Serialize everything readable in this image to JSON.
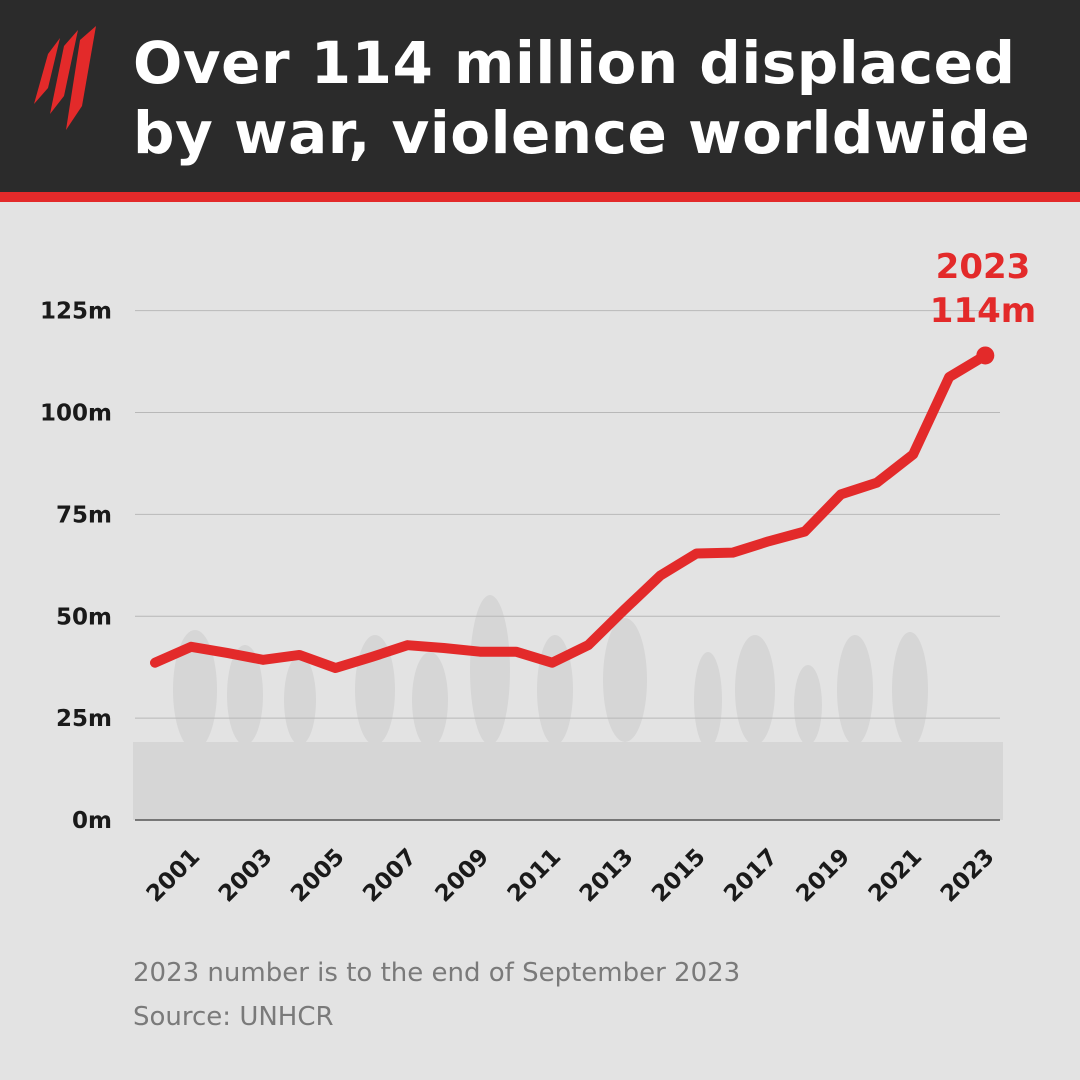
{
  "header": {
    "title_line1": "Over 114 million displaced",
    "title_line2": "by war, violence worldwide",
    "logo_icon": "sbs-logo-icon"
  },
  "colors": {
    "header_bg": "#2b2b2b",
    "accent": "#e32a2a",
    "background": "#e3e3e3"
  },
  "chart_data": {
    "type": "line",
    "title": "Over 114 million displaced by war, violence worldwide",
    "x": [
      2000,
      2001,
      2002,
      2003,
      2004,
      2005,
      2006,
      2007,
      2008,
      2009,
      2010,
      2011,
      2012,
      2013,
      2014,
      2015,
      2016,
      2017,
      2018,
      2019,
      2020,
      2021,
      2022,
      2023
    ],
    "series": [
      {
        "values": [
          38.6,
          42.5,
          41.0,
          39.3,
          40.5,
          37.3,
          40.0,
          42.9,
          42.2,
          41.3,
          41.3,
          38.6,
          42.9,
          51.6,
          60.0,
          65.4,
          65.6,
          68.4,
          70.8,
          79.9,
          82.8,
          89.7,
          108.7,
          114
        ],
        "color": "#e32a2a"
      }
    ],
    "ylim": [
      0,
      125
    ],
    "yticks": [
      "0m",
      "25m",
      "50m",
      "75m",
      "100m",
      "125m"
    ],
    "xticks": [
      "2001",
      "2003",
      "2005",
      "2007",
      "2009",
      "2011",
      "2013",
      "2015",
      "2017",
      "2019",
      "2021",
      "2023"
    ],
    "grid": true,
    "annotation": {
      "year": "2023",
      "value": "114m"
    }
  },
  "footer": {
    "note": "2023 number is to the end of September 2023",
    "source": "Source: UNHCR"
  }
}
